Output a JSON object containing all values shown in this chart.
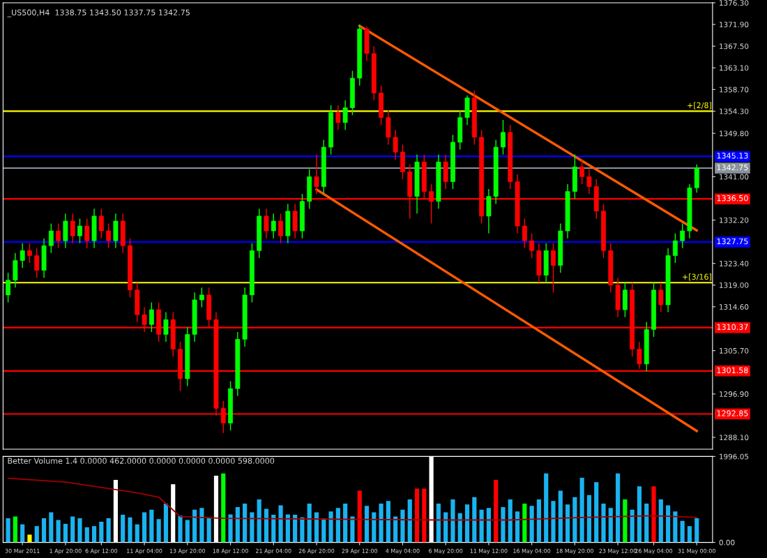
{
  "chart_data": [
    {
      "type": "candlestick",
      "title": "_US500,H4  1338.75 1343.50 1337.75 1342.75",
      "tick_labels": "y",
      "grid": false,
      "legend": false,
      "categories": [
        null,
        null,
        null,
        null,
        null,
        null,
        null,
        null,
        null,
        null,
        null,
        null,
        null,
        null,
        null,
        null,
        null,
        null,
        null,
        null,
        null,
        null,
        null,
        null,
        null,
        null,
        null,
        null,
        null,
        null,
        null,
        null,
        null,
        null,
        null,
        null,
        null,
        null,
        null,
        null,
        null,
        null,
        null,
        null,
        null,
        null,
        null,
        null,
        null,
        null,
        null,
        null,
        null,
        null,
        null,
        null,
        null,
        null,
        null,
        null,
        null,
        null,
        null,
        null,
        null,
        null,
        null,
        null,
        null,
        null,
        null,
        null,
        null,
        null,
        null,
        null,
        null,
        null,
        null,
        null,
        null,
        null,
        null,
        null,
        null,
        null,
        null,
        null,
        null,
        null,
        null,
        null,
        null,
        null,
        null,
        null,
        null
      ],
      "ohlc": [
        [
          1317,
          1321.5,
          1315.5,
          1320
        ],
        [
          1320,
          1325.5,
          1318.5,
          1324
        ],
        [
          1324,
          1327.5,
          1322.5,
          1326
        ],
        [
          1326,
          1327.5,
          1323.5,
          1325
        ],
        [
          1325,
          1326.5,
          1320.5,
          1322
        ],
        [
          1322,
          1328.5,
          1320.5,
          1327
        ],
        [
          1327,
          1331.5,
          1325.5,
          1330
        ],
        [
          1330,
          1331.5,
          1326.5,
          1328
        ],
        [
          1328,
          1333.5,
          1326.5,
          1332
        ],
        [
          1332,
          1333.5,
          1327.5,
          1329
        ],
        [
          1329,
          1332.5,
          1327.5,
          1331
        ],
        [
          1331,
          1332.5,
          1326.5,
          1328
        ],
        [
          1328,
          1334.5,
          1326.5,
          1333
        ],
        [
          1333,
          1334.5,
          1328.5,
          1330
        ],
        [
          1330,
          1331.5,
          1326.5,
          1328
        ],
        [
          1328,
          1333.5,
          1326.5,
          1332
        ],
        [
          1332,
          1333.5,
          1325.5,
          1327
        ],
        [
          1327,
          1328.5,
          1316.5,
          1318
        ],
        [
          1318,
          1319.5,
          1311.5,
          1313
        ],
        [
          1313,
          1314.5,
          1309.5,
          1311
        ],
        [
          1311,
          1315.5,
          1309.5,
          1314
        ],
        [
          1314,
          1315.5,
          1307.5,
          1309
        ],
        [
          1309,
          1313.5,
          1307.5,
          1312
        ],
        [
          1312,
          1313.5,
          1304.5,
          1306
        ],
        [
          1306,
          1307.5,
          1297.5,
          1300
        ],
        [
          1300,
          1310.5,
          1298.5,
          1309
        ],
        [
          1309,
          1317.5,
          1307.5,
          1316
        ],
        [
          1316,
          1318.5,
          1314.5,
          1317
        ],
        [
          1317,
          1318.5,
          1310.5,
          1312
        ],
        [
          1312,
          1313.5,
          1292.5,
          1294
        ],
        [
          1294,
          1295.5,
          1289,
          1291
        ],
        [
          1291,
          1299.5,
          1289.5,
          1298
        ],
        [
          1298,
          1309.5,
          1296.5,
          1308
        ],
        [
          1308,
          1318.5,
          1306.5,
          1317
        ],
        [
          1317,
          1327.5,
          1315.5,
          1326
        ],
        [
          1326,
          1334.5,
          1324.5,
          1333
        ],
        [
          1333,
          1334.5,
          1328.5,
          1330
        ],
        [
          1330,
          1333.5,
          1328.5,
          1332
        ],
        [
          1332,
          1333.5,
          1327.5,
          1329
        ],
        [
          1329,
          1335.5,
          1327.5,
          1334
        ],
        [
          1334,
          1335.5,
          1328.5,
          1330
        ],
        [
          1330,
          1337.5,
          1328.5,
          1336
        ],
        [
          1336,
          1342.5,
          1334.5,
          1341
        ],
        [
          1341,
          1345.5,
          1337.5,
          1339
        ],
        [
          1339,
          1348.5,
          1337.5,
          1347
        ],
        [
          1347,
          1355.5,
          1345.5,
          1354
        ],
        [
          1354,
          1355.5,
          1350.5,
          1352
        ],
        [
          1352,
          1356.5,
          1350.5,
          1355
        ],
        [
          1355,
          1362.5,
          1353.5,
          1361
        ],
        [
          1361,
          1371.9,
          1359.5,
          1371
        ],
        [
          1371,
          1371.5,
          1364.5,
          1366
        ],
        [
          1366,
          1367.5,
          1356.5,
          1358
        ],
        [
          1358,
          1359.5,
          1351.5,
          1353
        ],
        [
          1353,
          1354.5,
          1347.5,
          1349
        ],
        [
          1349,
          1350.5,
          1344.5,
          1346
        ],
        [
          1346,
          1347.5,
          1340.5,
          1342
        ],
        [
          1342,
          1343.5,
          1332.5,
          1337
        ],
        [
          1337,
          1345.5,
          1333.5,
          1344
        ],
        [
          1344,
          1345.5,
          1336.5,
          1338
        ],
        [
          1338,
          1339.5,
          1331.5,
          1336
        ],
        [
          1336,
          1345.5,
          1334.5,
          1344
        ],
        [
          1344,
          1345.5,
          1338.5,
          1340
        ],
        [
          1340,
          1349.5,
          1338.5,
          1348
        ],
        [
          1348,
          1354.5,
          1346.5,
          1353
        ],
        [
          1353,
          1357.5,
          1351.5,
          1357
        ],
        [
          1357,
          1358.5,
          1347.5,
          1349
        ],
        [
          1349,
          1350.5,
          1331.5,
          1333
        ],
        [
          1333,
          1338.5,
          1329.5,
          1337
        ],
        [
          1337,
          1348.5,
          1335.5,
          1347
        ],
        [
          1347,
          1352.5,
          1345.5,
          1350
        ],
        [
          1350,
          1351.5,
          1338.5,
          1340
        ],
        [
          1340,
          1341.5,
          1329.5,
          1331
        ],
        [
          1331,
          1332.5,
          1326.5,
          1328
        ],
        [
          1328,
          1329.5,
          1324.5,
          1326
        ],
        [
          1326,
          1327.5,
          1319.5,
          1321
        ],
        [
          1321,
          1327.5,
          1319.5,
          1326
        ],
        [
          1326,
          1327.5,
          1317.5,
          1323
        ],
        [
          1323,
          1331.5,
          1321.5,
          1330
        ],
        [
          1330,
          1339.5,
          1328.5,
          1338
        ],
        [
          1338,
          1345.5,
          1336.5,
          1343
        ],
        [
          1343,
          1344.5,
          1339.5,
          1341
        ],
        [
          1341,
          1342.5,
          1337.5,
          1339
        ],
        [
          1339,
          1340.5,
          1332.5,
          1334
        ],
        [
          1334,
          1335.5,
          1324.5,
          1326
        ],
        [
          1326,
          1327.5,
          1317.5,
          1319
        ],
        [
          1319,
          1320.5,
          1312.5,
          1314
        ],
        [
          1314,
          1319.5,
          1312.5,
          1318
        ],
        [
          1318,
          1319.5,
          1304.5,
          1306
        ],
        [
          1306,
          1307.5,
          1302,
          1303
        ],
        [
          1303,
          1311.5,
          1301.5,
          1310
        ],
        [
          1310,
          1319.5,
          1308.5,
          1318
        ],
        [
          1318,
          1319.5,
          1313.5,
          1315
        ],
        [
          1315,
          1326.5,
          1313.5,
          1325
        ],
        [
          1325,
          1329.5,
          1323.5,
          1328
        ],
        [
          1328,
          1331.5,
          1326.5,
          1330
        ],
        [
          1330,
          1339.5,
          1328.5,
          1338.75
        ],
        [
          1338.75,
          1343.5,
          1337.75,
          1342.75
        ]
      ],
      "colors": [
        "#00ff00",
        "#00ff00",
        "#00ff00",
        "#ff0000",
        "#ff0000",
        "#00ff00",
        "#00ff00",
        "#ff0000",
        "#00ff00",
        "#ff0000",
        "#00ff00",
        "#ff0000",
        "#00ff00",
        "#ff0000",
        "#ff0000",
        "#00ff00",
        "#ff0000",
        "#ff0000",
        "#ff0000",
        "#ff0000",
        "#00ff00",
        "#ff0000",
        "#00ff00",
        "#ff0000",
        "#ff0000",
        "#00ff00",
        "#00ff00",
        "#00ff00",
        "#ff0000",
        "#ff0000",
        "#ff0000",
        "#00ff00",
        "#00ff00",
        "#00ff00",
        "#00ff00",
        "#00ff00",
        "#ff0000",
        "#00ff00",
        "#ff0000",
        "#00ff00",
        "#ff0000",
        "#00ff00",
        "#00ff00",
        "#ff0000",
        "#00ff00",
        "#00ff00",
        "#ff0000",
        "#00ff00",
        "#00ff00",
        "#00ff00",
        "#ff0000",
        "#ff0000",
        "#ff0000",
        "#ff0000",
        "#ff0000",
        "#ff0000",
        "#ff0000",
        "#00ff00",
        "#ff0000",
        "#ff0000",
        "#00ff00",
        "#ff0000",
        "#00ff00",
        "#00ff00",
        "#00ff00",
        "#ff0000",
        "#ff0000",
        "#00ff00",
        "#00ff00",
        "#00ff00",
        "#ff0000",
        "#ff0000",
        "#ff0000",
        "#ff0000",
        "#ff0000",
        "#00ff00",
        "#ff0000",
        "#00ff00",
        "#00ff00",
        "#00ff00",
        "#ff0000",
        "#ff0000",
        "#ff0000",
        "#ff0000",
        "#ff0000",
        "#ff0000",
        "#00ff00",
        "#ff0000",
        "#ff0000",
        "#00ff00",
        "#00ff00",
        "#ff0000",
        "#00ff00",
        "#00ff00",
        "#00ff00",
        "#00ff00",
        "#00ff00"
      ],
      "series": [
        {
          "type": "line",
          "color": "#ff5a00",
          "values": [
            null,
            null,
            null,
            null,
            null,
            null,
            null,
            null,
            null,
            null,
            null,
            null,
            null,
            null,
            null,
            null,
            null,
            null,
            null,
            null,
            null,
            null,
            null,
            null,
            null,
            null,
            null,
            null,
            null,
            null,
            null,
            null,
            null,
            null,
            null,
            null,
            null,
            null,
            null,
            null,
            null,
            null,
            null,
            null,
            null,
            null,
            null,
            null,
            null,
            1371.6,
            null,
            null,
            null,
            null,
            null,
            null,
            null,
            null,
            null,
            null,
            null,
            null,
            null,
            null,
            null,
            null,
            null,
            null,
            null,
            null,
            null,
            null,
            null,
            null,
            null,
            null,
            null,
            null,
            null,
            null,
            null,
            null,
            null,
            null,
            null,
            null,
            null,
            null,
            null,
            null,
            null,
            null,
            null,
            null,
            null,
            null,
            1330.1
          ]
        },
        {
          "type": "line",
          "color": "#ff5a00",
          "values": [
            null,
            null,
            null,
            null,
            null,
            null,
            null,
            null,
            null,
            null,
            null,
            null,
            null,
            null,
            null,
            null,
            null,
            null,
            null,
            null,
            null,
            null,
            null,
            null,
            null,
            null,
            null,
            null,
            null,
            null,
            null,
            null,
            null,
            null,
            null,
            null,
            null,
            null,
            null,
            null,
            null,
            null,
            null,
            1338.4,
            null,
            null,
            null,
            null,
            null,
            null,
            null,
            null,
            null,
            null,
            null,
            null,
            null,
            null,
            null,
            null,
            null,
            null,
            null,
            null,
            null,
            null,
            null,
            null,
            null,
            null,
            null,
            null,
            null,
            null,
            null,
            null,
            null,
            null,
            null,
            null,
            null,
            null,
            null,
            null,
            null,
            null,
            null,
            null,
            null,
            null,
            null,
            null,
            null,
            null,
            null,
            null,
            1289.4
          ]
        }
      ],
      "annotations": [
        {
          "text": "+[2/8]",
          "y": 1354.3
        },
        {
          "text": "+[3/16]",
          "y": 1319.5
        }
      ],
      "ylim": [
        1285.7,
        1376.3
      ],
      "yticks": [
        {
          "value": 1376.3,
          "label": "1376.30"
        },
        {
          "value": 1371.9,
          "label": "1371.90"
        },
        {
          "value": 1367.5,
          "label": "1367.50"
        },
        {
          "value": 1363.1,
          "label": "1363.10"
        },
        {
          "value": 1358.7,
          "label": "1358.70"
        },
        {
          "value": 1354.3,
          "label": "1354.30"
        },
        {
          "value": 1349.8,
          "label": "1349.80"
        },
        {
          "value": 1341.0,
          "label": "1341.00"
        },
        {
          "value": 1332.2,
          "label": "1332.20"
        },
        {
          "value": 1323.4,
          "label": "1323.40"
        },
        {
          "value": 1319.0,
          "label": "1319.00"
        },
        {
          "value": 1314.6,
          "label": "1314.60"
        },
        {
          "value": 1305.7,
          "label": "1305.70"
        },
        {
          "value": 1296.9,
          "label": "1296.90"
        },
        {
          "value": 1288.1,
          "label": "1288.10"
        }
      ],
      "ref_lines": [
        {
          "axis": "y",
          "value": 1354.3,
          "color": "#ffff00"
        },
        {
          "axis": "y",
          "value": 1345.13,
          "label": "1345.13",
          "color": "#0000ff"
        },
        {
          "axis": "y",
          "value": 1342.75,
          "label": "1342.75",
          "color": "#8a939c"
        },
        {
          "axis": "y",
          "value": 1336.5,
          "label": "1336.50",
          "color": "#ff0000"
        },
        {
          "axis": "y",
          "value": 1327.75,
          "label": "1327.75",
          "color": "#0000ff"
        },
        {
          "axis": "y",
          "value": 1319.5,
          "color": "#ffff00"
        },
        {
          "axis": "y",
          "value": 1310.37,
          "label": "1310.37",
          "color": "#ff0000"
        },
        {
          "axis": "y",
          "value": 1301.58,
          "label": "1301.58",
          "color": "#ff0000"
        },
        {
          "axis": "y",
          "value": 1292.85,
          "label": "1292.85",
          "color": "#ff0000"
        }
      ]
    },
    {
      "type": "bar",
      "title": "Better Volume 1.4 0.0000 462.0000 0.0000 0.0000 0.0000 598.0000",
      "grid": false,
      "legend": false,
      "categories": [
        null,
        null,
        "30 Mar 2011",
        null,
        null,
        null,
        null,
        null,
        "1 Apr 20:00",
        null,
        null,
        null,
        null,
        "6 Apr 12:00",
        null,
        null,
        null,
        null,
        null,
        "11 Apr 04:00",
        null,
        null,
        null,
        null,
        null,
        "13 Apr 20:00",
        null,
        null,
        null,
        null,
        null,
        "18 Apr 12:00",
        null,
        null,
        null,
        null,
        null,
        "21 Apr 04:00",
        null,
        null,
        null,
        null,
        null,
        "26 Apr 20:00",
        null,
        null,
        null,
        null,
        null,
        "29 Apr 12:00",
        null,
        null,
        null,
        null,
        null,
        "4 May 04:00",
        null,
        null,
        null,
        null,
        null,
        "6 May 20:00",
        null,
        null,
        null,
        null,
        null,
        "11 May 12:00",
        null,
        null,
        null,
        null,
        null,
        "16 May 04:00",
        null,
        null,
        null,
        null,
        null,
        "18 May 20:00",
        null,
        null,
        null,
        null,
        null,
        "23 May 12:00",
        null,
        null,
        null,
        null,
        "26 May 04:00",
        null,
        null,
        null,
        null,
        null,
        "31 May 00:00"
      ],
      "values": [
        560,
        600,
        420,
        180,
        380,
        560,
        700,
        520,
        430,
        600,
        560,
        350,
        380,
        480,
        560,
        1450,
        640,
        580,
        420,
        700,
        760,
        540,
        900,
        1350,
        620,
        520,
        760,
        800,
        560,
        1550,
        1600,
        650,
        820,
        900,
        700,
        1000,
        780,
        640,
        860,
        650,
        640,
        580,
        900,
        700,
        560,
        720,
        800,
        900,
        600,
        1200,
        850,
        700,
        900,
        960,
        600,
        760,
        1000,
        1250,
        1250,
        1990,
        900,
        700,
        1000,
        680,
        880,
        1050,
        760,
        800,
        1450,
        820,
        1000,
        720,
        900,
        850,
        1000,
        1600,
        960,
        1200,
        880,
        1050,
        1500,
        1100,
        1400,
        900,
        800,
        1600,
        1000,
        760,
        1300,
        900,
        1300,
        1000,
        860,
        720,
        500,
        380,
        560
      ],
      "colors": [
        "#1ab2ef",
        "#00ff00",
        "#1ab2ef",
        "#ffff00",
        "#1ab2ef",
        "#1ab2ef",
        "#1ab2ef",
        "#1ab2ef",
        "#1ab2ef",
        "#1ab2ef",
        "#1ab2ef",
        "#1ab2ef",
        "#1ab2ef",
        "#1ab2ef",
        "#1ab2ef",
        "#ffffff",
        "#1ab2ef",
        "#1ab2ef",
        "#1ab2ef",
        "#1ab2ef",
        "#1ab2ef",
        "#1ab2ef",
        "#1ab2ef",
        "#ffffff",
        "#1ab2ef",
        "#1ab2ef",
        "#1ab2ef",
        "#1ab2ef",
        "#1ab2ef",
        "#ffffff",
        "#00ff00",
        "#1ab2ef",
        "#1ab2ef",
        "#1ab2ef",
        "#1ab2ef",
        "#1ab2ef",
        "#1ab2ef",
        "#1ab2ef",
        "#1ab2ef",
        "#1ab2ef",
        "#1ab2ef",
        "#1ab2ef",
        "#1ab2ef",
        "#1ab2ef",
        "#1ab2ef",
        "#1ab2ef",
        "#1ab2ef",
        "#1ab2ef",
        "#1ab2ef",
        "#ff0000",
        "#1ab2ef",
        "#1ab2ef",
        "#1ab2ef",
        "#1ab2ef",
        "#1ab2ef",
        "#1ab2ef",
        "#1ab2ef",
        "#ff0000",
        "#ff0000",
        "#ffffff",
        "#1ab2ef",
        "#1ab2ef",
        "#1ab2ef",
        "#1ab2ef",
        "#1ab2ef",
        "#1ab2ef",
        "#1ab2ef",
        "#1ab2ef",
        "#ff0000",
        "#1ab2ef",
        "#1ab2ef",
        "#1ab2ef",
        "#00ff00",
        "#1ab2ef",
        "#1ab2ef",
        "#1ab2ef",
        "#1ab2ef",
        "#1ab2ef",
        "#1ab2ef",
        "#1ab2ef",
        "#1ab2ef",
        "#1ab2ef",
        "#1ab2ef",
        "#1ab2ef",
        "#1ab2ef",
        "#1ab2ef",
        "#00ff00",
        "#1ab2ef",
        "#1ab2ef",
        "#1ab2ef",
        "#ff0000",
        "#1ab2ef",
        "#1ab2ef",
        "#1ab2ef",
        "#1ab2ef",
        "#1ab2ef",
        "#1ab2ef"
      ],
      "series": [
        {
          "type": "line",
          "color": "#a00000",
          "values": [
            1490,
            null,
            null,
            null,
            null,
            null,
            null,
            null,
            1400,
            null,
            null,
            null,
            null,
            null,
            1250,
            null,
            null,
            null,
            1150,
            null,
            null,
            1050,
            null,
            null,
            600,
            null,
            null,
            null,
            null,
            null,
            560,
            null,
            null,
            null,
            null,
            null,
            null,
            null,
            null,
            null,
            null,
            null,
            null,
            null,
            null,
            540,
            null,
            null,
            null,
            null,
            null,
            null,
            null,
            null,
            null,
            null,
            null,
            null,
            null,
            null,
            520,
            null,
            null,
            null,
            null,
            null,
            null,
            null,
            null,
            null,
            520,
            null,
            null,
            null,
            null,
            null,
            null,
            null,
            null,
            null,
            580,
            null,
            null,
            null,
            null,
            null,
            null,
            null,
            null,
            null,
            620,
            null,
            null,
            null,
            null,
            null,
            580
          ]
        }
      ],
      "ylim": [
        0,
        1996.05
      ],
      "yticks": [
        {
          "value": 0,
          "label": "0.00"
        },
        {
          "value": 1996.05,
          "label": "1996.05"
        }
      ]
    }
  ]
}
